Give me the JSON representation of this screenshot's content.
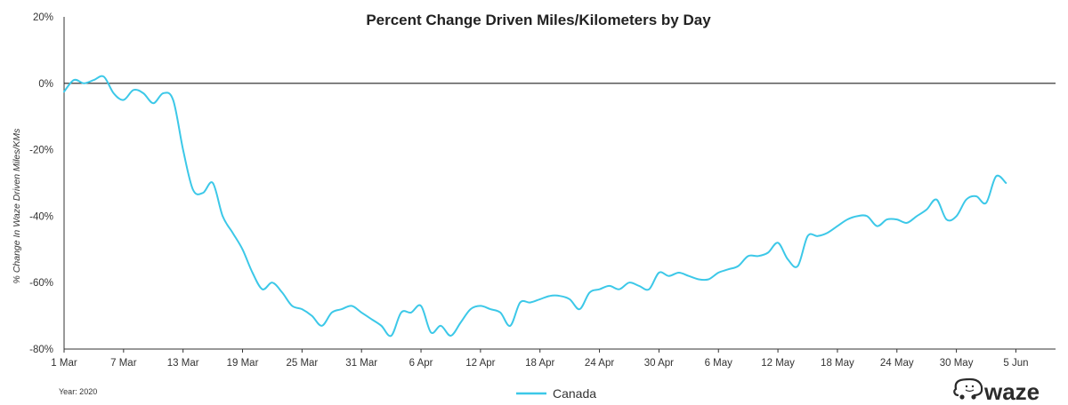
{
  "chart_data": {
    "type": "line",
    "title": "Percent Change Driven Miles/Kilometers by Day",
    "ylabel": "% Change In Waze Driven Miles/KMs",
    "ylim": [
      -80,
      20
    ],
    "y_ticks": [
      20,
      0,
      -20,
      -40,
      -60,
      -80
    ],
    "y_tick_labels": [
      "20%",
      "0%",
      "-20%",
      "-40%",
      "-60%",
      "-80%"
    ],
    "x_tick_labels": [
      "1 Mar",
      "7 Mar",
      "13 Mar",
      "19 Mar",
      "25 Mar",
      "31 Mar",
      "6 Apr",
      "12 Apr",
      "18 Apr",
      "24 Apr",
      "30 Apr",
      "6 May",
      "12 May",
      "18 May",
      "24 May",
      "30 May",
      "5 Jun"
    ],
    "x_tick_step_days": 6,
    "x_range_days": [
      0,
      100
    ],
    "grid": false,
    "legend_position": "bottom-center",
    "footnote": "Year: 2020",
    "series": [
      {
        "name": "Canada",
        "color": "#3cc8e8",
        "values": [
          -2.5,
          1,
          0,
          1,
          2,
          -3,
          -5,
          -2,
          -3,
          -6,
          -3,
          -5,
          -20,
          -32,
          -33,
          -30,
          -40,
          -45,
          -50,
          -57,
          -62,
          -60,
          -63,
          -67,
          -68,
          -70,
          -73,
          -69,
          -68,
          -67,
          -69,
          -71,
          -73,
          -76,
          -69,
          -69,
          -67,
          -75,
          -73,
          -76,
          -72,
          -68,
          -67,
          -68,
          -69,
          -73,
          -66,
          -66,
          -65,
          -64,
          -64,
          -65,
          -68,
          -63,
          -62,
          -61,
          -62,
          -60,
          -61,
          -62,
          -57,
          -58,
          -57,
          -58,
          -59,
          -59,
          -57,
          -56,
          -55,
          -52,
          -52,
          -51,
          -48,
          -53,
          -55,
          -46,
          -46,
          -45,
          -43,
          -41,
          -40,
          -40,
          -43,
          -41,
          -41,
          -42,
          -40,
          -38,
          -35,
          -41,
          -40,
          -35,
          -34,
          -36,
          -28,
          -30
        ]
      }
    ]
  },
  "brand": {
    "logo_text": "waze"
  }
}
